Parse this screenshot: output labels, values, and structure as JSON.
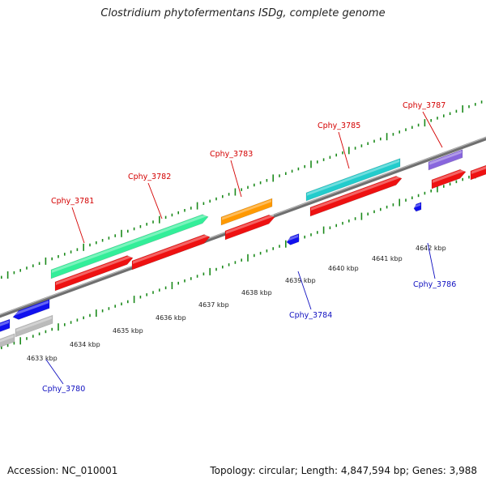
{
  "header": {
    "title": "Clostridium phytofermentans ISDg, complete genome"
  },
  "footer": {
    "accession": "Accession: NC_010001",
    "summary": "Topology: circular; Length: 4,847,594 bp; Genes: 3,988"
  },
  "colors": {
    "forward_label": "#d40000",
    "reverse_label": "#1010c0",
    "backbone": "#888888",
    "tick": "#1b8a1b",
    "cds": "#ee1111"
  },
  "scale": {
    "labels": [
      "4633 kbp",
      "4634 kbp",
      "4635 kbp",
      "4636 kbp",
      "4637 kbp",
      "4638 kbp",
      "4639 kbp",
      "4640 kbp",
      "4641 kbp",
      "4642 kbp"
    ]
  },
  "genes": {
    "forward": [
      {
        "label": "Cphy_3781",
        "color": "#33ee99"
      },
      {
        "label": "Cphy_3782",
        "color": "#33ee99"
      },
      {
        "label": "Cphy_3783",
        "color": "#ff9900"
      },
      {
        "label": "Cphy_3785",
        "color": "#22cccc"
      },
      {
        "label": "Cphy_3787",
        "color": "#8866dd"
      }
    ],
    "reverse": [
      {
        "label": "Cphy_3780",
        "color": "#bbbbbb"
      },
      {
        "label": "Cphy_3784",
        "color": "#1111ee"
      },
      {
        "label": "Cphy_3786",
        "color": "#1111ee"
      }
    ]
  }
}
